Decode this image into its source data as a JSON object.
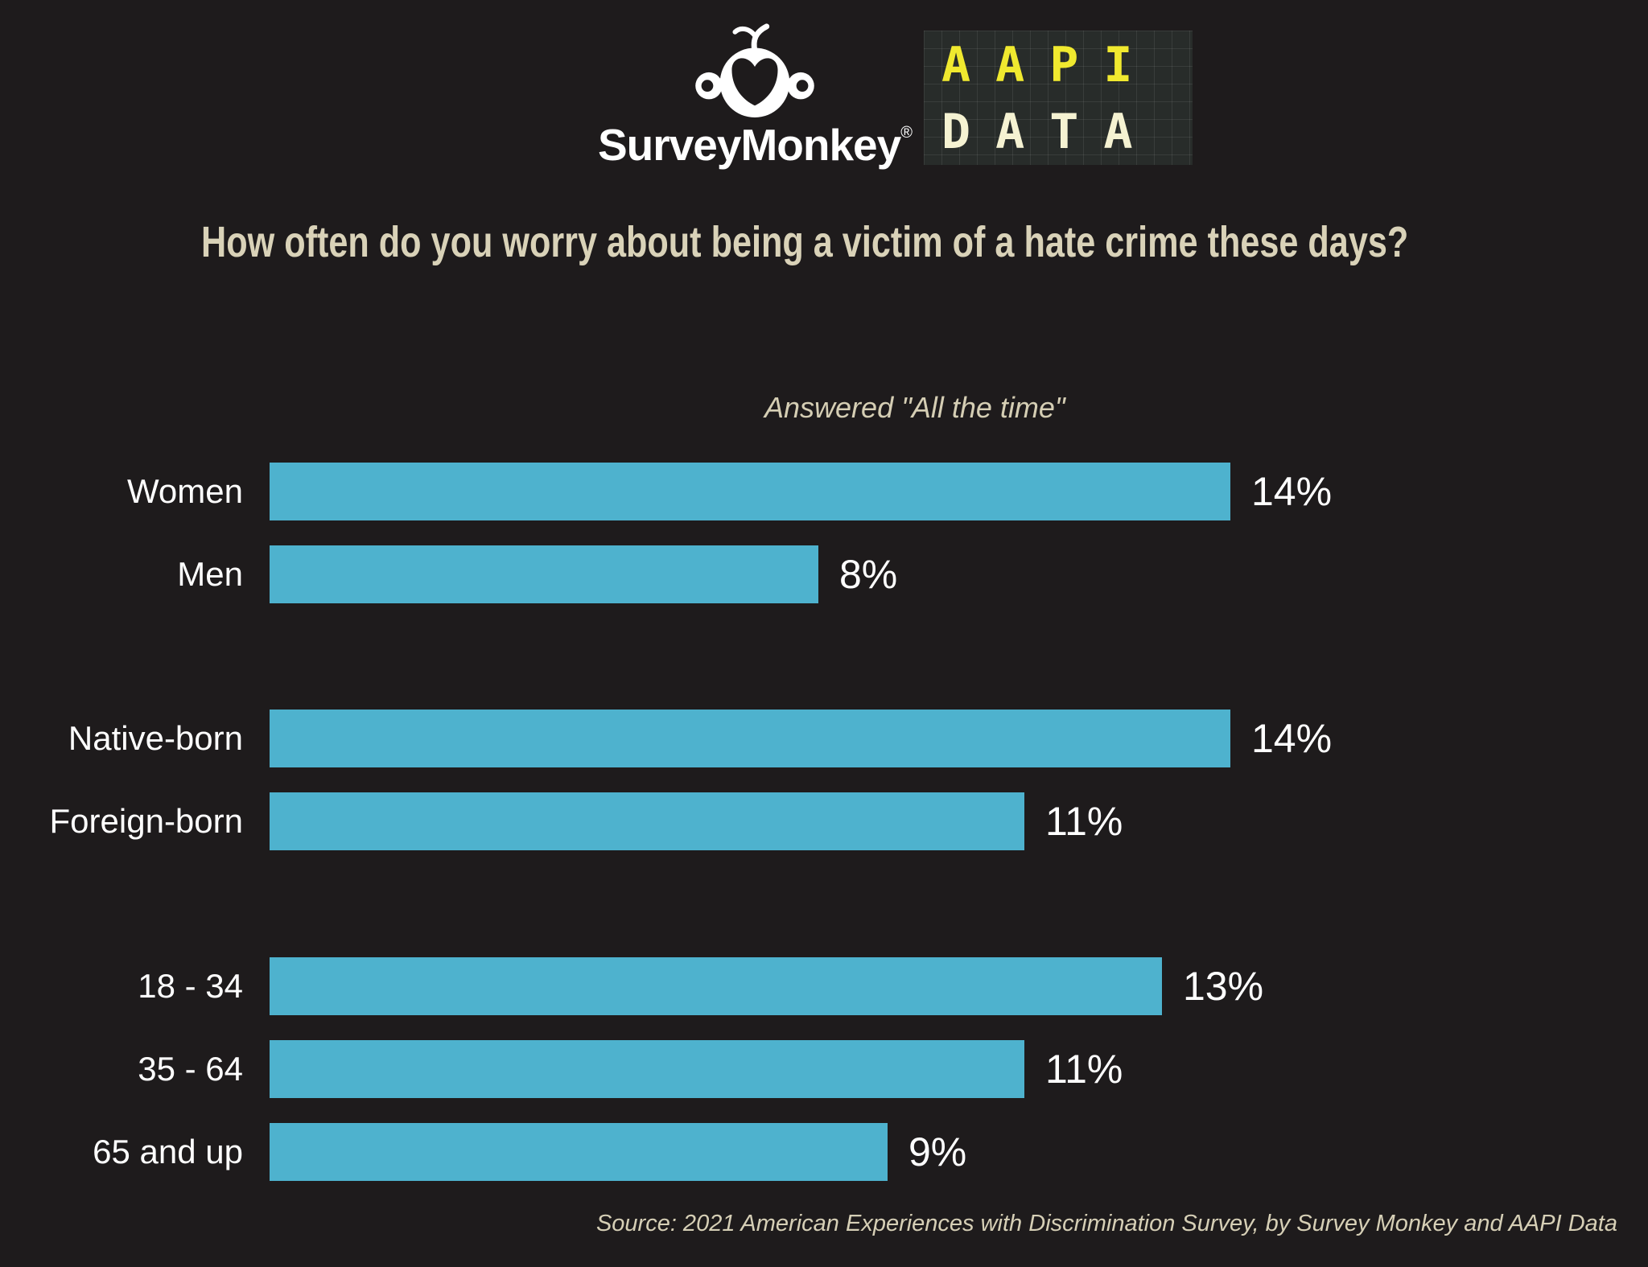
{
  "header": {
    "surveymonkey_wordmark": "SurveyMonkey",
    "registered_mark": "®",
    "aapi_logo": {
      "line1": "AAPI",
      "line2": "DATA"
    }
  },
  "colors": {
    "background": "#1e1b1c",
    "bar": "#4eb2ce",
    "title_text": "#d9d2b8",
    "label_text": "#ffffff",
    "aapi_yellow": "#f0e92f",
    "aapi_cream": "#f5f2d2"
  },
  "chart_data": {
    "type": "bar",
    "orientation": "horizontal",
    "title": "How often do you worry about being a victim of a hate crime these days?",
    "subtitle": "Answered \"All the time\"",
    "unit": "%",
    "xlim": [
      0,
      14
    ],
    "grid": false,
    "legend": false,
    "groups": [
      {
        "name": "gender",
        "bars": [
          {
            "label": "Women",
            "value": 14,
            "display": "14%"
          },
          {
            "label": "Men",
            "value": 8,
            "display": "8%"
          }
        ]
      },
      {
        "name": "nativity",
        "bars": [
          {
            "label": "Native-born",
            "value": 14,
            "display": "14%"
          },
          {
            "label": "Foreign-born",
            "value": 11,
            "display": "11%"
          }
        ]
      },
      {
        "name": "age",
        "bars": [
          {
            "label": "18 - 34",
            "value": 13,
            "display": "13%"
          },
          {
            "label": "35 - 64",
            "value": 11,
            "display": "11%"
          },
          {
            "label": "65 and up",
            "value": 9,
            "display": "9%"
          }
        ]
      }
    ],
    "source": "Source: 2021 American Experiences with Discrimination Survey, by Survey Monkey and AAPI Data"
  }
}
